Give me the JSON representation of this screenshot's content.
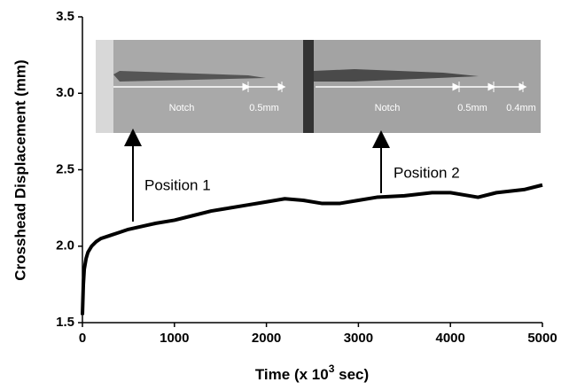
{
  "chart_data": {
    "type": "line",
    "y_label": "Crosshead Displacement (mm)",
    "x_label": [
      "Time (x 10",
      "3",
      " sec)"
    ],
    "x": [
      0,
      10,
      20,
      40,
      60,
      100,
      150,
      200,
      300,
      400,
      500,
      650,
      800,
      1000,
      1200,
      1400,
      1600,
      1800,
      2000,
      2200,
      2400,
      2600,
      2800,
      3000,
      3200,
      3500,
      3800,
      4000,
      4200,
      4300,
      4500,
      4800,
      5000
    ],
    "series": [
      {
        "color": "#000000",
        "values": [
          1.55,
          1.75,
          1.85,
          1.92,
          1.96,
          2.0,
          2.03,
          2.05,
          2.07,
          2.09,
          2.11,
          2.13,
          2.15,
          2.17,
          2.2,
          2.23,
          2.25,
          2.27,
          2.29,
          2.31,
          2.3,
          2.28,
          2.28,
          2.3,
          2.32,
          2.33,
          2.35,
          2.35,
          2.33,
          2.32,
          2.35,
          2.37,
          2.4
        ]
      }
    ],
    "xlim": [
      0,
      5000
    ],
    "xticks": [
      0,
      1000,
      2000,
      3000,
      4000,
      5000
    ],
    "ylim": [
      1.5,
      3.5
    ],
    "yticks": [
      1.5,
      {
        "value": 2,
        "label": "2.0"
      },
      2.5,
      {
        "value": 3,
        "label": "3.0"
      },
      3.5
    ],
    "annotations": [
      "Position 1",
      "Position 2"
    ],
    "insets": [
      {
        "labels": [
          "Notch",
          "0.5mm"
        ]
      },
      {
        "labels": [
          "Notch",
          "0.5mm",
          "0.4mm"
        ]
      }
    ]
  }
}
